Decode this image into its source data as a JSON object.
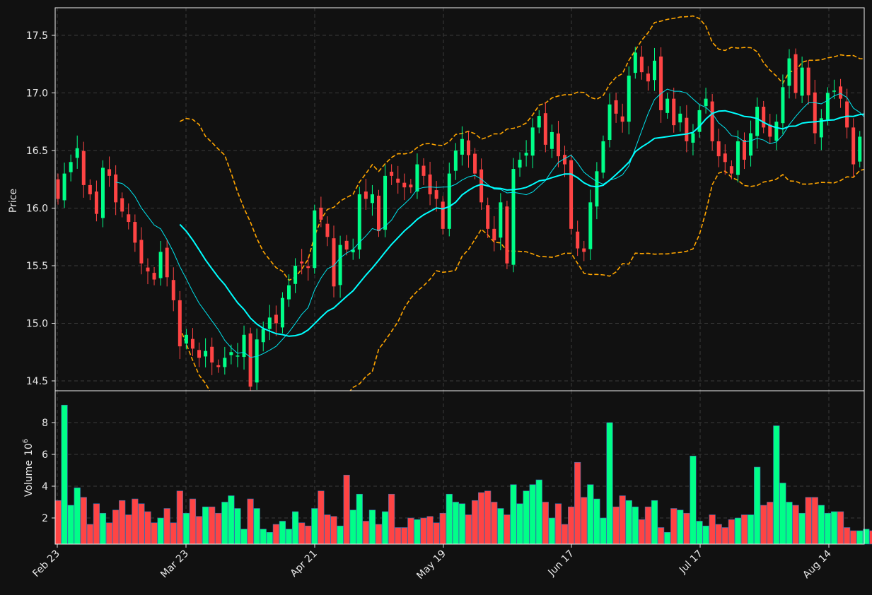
{
  "chart_data": {
    "type": "candlestick",
    "ylabel": "Price",
    "volume_label": "Volume",
    "volume_exponent": "6",
    "x_ticks": [
      "Feb 23",
      "Mar 23",
      "Apr 21",
      "May 19",
      "Jun 17",
      "Jul 17",
      "Aug 14"
    ],
    "price_ticks": [
      "14.5",
      "15.0",
      "15.5",
      "16.0",
      "16.5",
      "17.0",
      "17.5"
    ],
    "volume_ticks": [
      "2",
      "4",
      "6",
      "8"
    ],
    "colors": {
      "background": "#111111",
      "up": "#00ff88",
      "down": "#ff4444",
      "ma_fast": "#00e5ee",
      "ma_slow": "#00ffff",
      "bands": "#ffa500",
      "grid": "#3a3a3a"
    },
    "closes": [
      16.08,
      16.3,
      16.4,
      16.52,
      16.2,
      16.12,
      15.95,
      16.35,
      16.28,
      16.05,
      15.97,
      15.88,
      15.7,
      15.52,
      15.45,
      15.38,
      15.62,
      15.4,
      15.2,
      14.8,
      14.9,
      14.78,
      14.7,
      14.76,
      14.66,
      14.62,
      14.7,
      14.75,
      14.72,
      14.9,
      14.45,
      14.86,
      14.95,
      15.05,
      15.0,
      15.22,
      15.33,
      15.5,
      15.52,
      15.48,
      15.98,
      15.9,
      15.75,
      15.32,
      15.68,
      15.64,
      15.64,
      16.12,
      16.08,
      16.12,
      15.8,
      16.28,
      16.28,
      16.22,
      16.18,
      16.18,
      16.38,
      16.28,
      16.12,
      16.08,
      15.82,
      16.3,
      16.5,
      16.6,
      16.46,
      16.3,
      16.05,
      15.82,
      15.72,
      16.05,
      15.52,
      16.34,
      16.42,
      16.48,
      16.7,
      16.8,
      16.55,
      16.66,
      16.45,
      16.38,
      15.82,
      15.65,
      15.62,
      16.05,
      16.32,
      16.58,
      16.9,
      16.82,
      16.75,
      17.15,
      17.35,
      17.18,
      17.1,
      17.28,
      16.85,
      16.95,
      16.72,
      16.82,
      16.58,
      16.65,
      16.85,
      16.95,
      16.58,
      16.45,
      16.4,
      16.3,
      16.58,
      16.42,
      16.65,
      16.88,
      16.7,
      16.62,
      16.75,
      17.05,
      17.3,
      17.0,
      17.22,
      16.98,
      16.65,
      16.78,
      17.0,
      17.02,
      16.95,
      16.7,
      16.38,
      16.62,
      16.68,
      16.62
    ],
    "volumes": [
      3.1,
      9.1,
      2.8,
      3.9,
      3.3,
      1.6,
      2.9,
      2.3,
      1.7,
      2.5,
      3.1,
      2.2,
      3.2,
      2.9,
      2.4,
      1.7,
      2.0,
      2.6,
      1.7,
      3.7,
      2.3,
      3.2,
      2.1,
      2.7,
      2.7,
      2.3,
      3.0,
      3.4,
      2.6,
      1.3,
      3.2,
      2.6,
      1.3,
      1.1,
      1.6,
      1.8,
      1.3,
      2.4,
      1.7,
      1.5,
      2.6,
      3.7,
      2.2,
      2.1,
      1.5,
      4.7,
      2.5,
      3.5,
      1.8,
      2.5,
      1.6,
      2.4,
      3.5,
      1.4,
      1.4,
      2.0,
      1.9,
      2.0,
      2.1,
      1.7,
      2.3,
      3.5,
      3.0,
      2.9,
      2.2,
      3.1,
      3.6,
      3.7,
      3.0,
      2.6,
      2.2,
      4.1,
      2.9,
      3.7,
      4.1,
      4.4,
      3.0,
      2.0,
      2.9,
      1.6,
      2.7,
      5.5,
      3.3,
      4.1,
      3.2,
      2.0,
      8.0,
      2.7,
      3.4,
      3.1,
      2.7,
      1.9,
      2.7,
      3.1,
      1.4,
      1.1,
      2.6,
      2.5,
      2.3,
      5.9,
      1.8,
      1.5,
      2.2,
      1.6,
      1.4,
      1.9,
      2.0,
      2.2,
      2.2,
      5.2,
      2.8,
      3.0,
      7.8,
      4.2,
      3.0,
      2.8,
      2.3,
      3.3,
      3.3,
      2.8,
      2.3,
      2.4,
      2.4,
      1.4,
      1.2,
      1.2,
      1.3,
      1.2
    ]
  }
}
